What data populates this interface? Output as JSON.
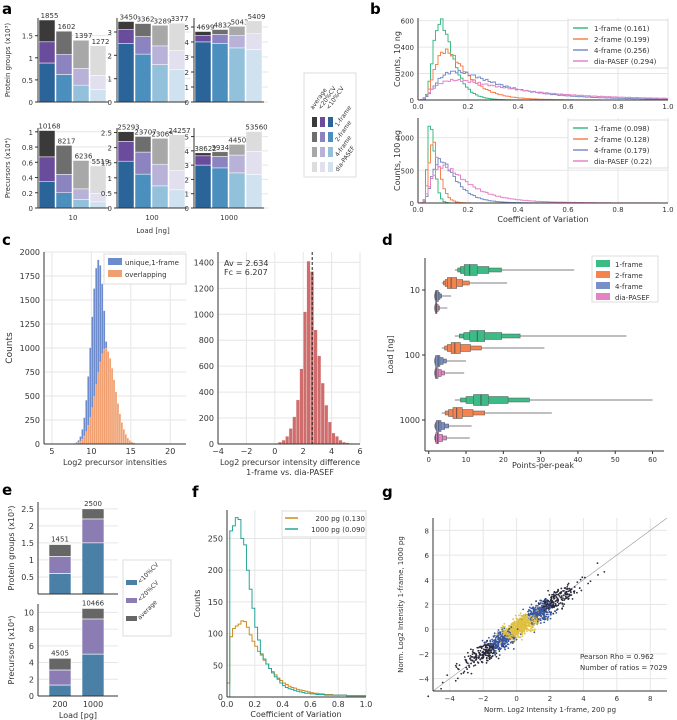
{
  "panels": {
    "a": "a",
    "b": "b",
    "c": "c",
    "d": "d",
    "e": "e",
    "f": "f",
    "g": "g"
  },
  "colors": {
    "avg": [
      "#3a3a3a",
      "#6e6e6e",
      "#a8a8a8",
      "#dcdcdc"
    ],
    "cv20": [
      "#6a4c9c",
      "#8c84c0",
      "#b8b2d8",
      "#e2e0ef"
    ],
    "cv10": [
      "#2a6499",
      "#4b8fbf",
      "#93c0da",
      "#d0e2ef"
    ],
    "b_series": [
      "#3dbb86",
      "#f4834e",
      "#7a8fc8",
      "#e483c6"
    ],
    "c_unique": "#6e8ccc",
    "c_overlap": "#f0a070",
    "c_diff": "#cf6d6d",
    "e_cv10": "#4a7fa6",
    "e_cv20": "#8c7cb4",
    "e_avg": "#666666",
    "f_200": "#d08b1a",
    "f_1000": "#27a598",
    "g_points": "#2a2a3a",
    "g_dense": "#3b57a0",
    "g_core": "#e0c040"
  },
  "chart_data": [
    {
      "id": "a",
      "type": "bar",
      "title": "",
      "xlabel": "Load [ng]",
      "groups": [
        "10",
        "100",
        "1000"
      ],
      "methods": [
        "1-frame",
        "2-frame",
        "4-frame",
        "dia-PASEF"
      ],
      "legend": {
        "rows": [
          "1-frame",
          "2-frame",
          "4-frame",
          "dia-PASEF"
        ],
        "cols": [
          "average",
          "<20%CV",
          "<10%CV"
        ]
      },
      "protein_groups": {
        "ylabel": "Protein groups (x10³)",
        "ylims": [
          [
            0,
            1.9
          ],
          [
            0,
            3.6
          ],
          [
            0,
            5.6
          ]
        ],
        "yticks": [
          [
            0,
            0.5,
            1,
            1.5
          ],
          [
            0,
            1,
            2,
            3
          ],
          [
            0,
            1,
            2,
            3,
            4,
            5
          ]
        ],
        "totals": [
          [
            1855,
            1602,
            1397,
            1272
          ],
          [
            3450,
            3362,
            3289,
            3377
          ],
          [
            4699,
            4832,
            5043,
            5409
          ]
        ],
        "cv20": [
          [
            1.36,
            1.08,
            0.76,
            0.6
          ],
          [
            3.1,
            2.8,
            2.4,
            2.2
          ],
          [
            4.45,
            4.5,
            4.45,
            4.55
          ]
        ],
        "cv10": [
          [
            0.88,
            0.62,
            0.38,
            0.28
          ],
          [
            2.5,
            2.05,
            1.6,
            1.38
          ],
          [
            4.0,
            3.9,
            3.6,
            3.5
          ]
        ]
      },
      "precursors": {
        "ylabel": "Precursors (x10⁴)",
        "ylims": [
          [
            0,
            1.05
          ],
          [
            0,
            2.65
          ],
          [
            0,
            5.6
          ]
        ],
        "yticks": [
          [
            0,
            0.2,
            0.4,
            0.6,
            0.8,
            1
          ],
          [
            0,
            0.5,
            1,
            1.5,
            2,
            2.5
          ],
          [
            0,
            1,
            2,
            3,
            4,
            5
          ]
        ],
        "totals": [
          [
            10168,
            8217,
            6236,
            5519
          ],
          [
            25293,
            23707,
            23065,
            24257
          ],
          [
            38622,
            39345,
            44503,
            53560
          ]
        ],
        "cv20": [
          [
            0.67,
            0.44,
            0.25,
            0.19
          ],
          [
            2.2,
            1.85,
            1.45,
            1.25
          ],
          [
            3.65,
            3.6,
            3.7,
            3.95
          ]
        ],
        "cv10": [
          [
            0.35,
            0.2,
            0.11,
            0.08
          ],
          [
            1.55,
            1.12,
            0.73,
            0.6
          ],
          [
            3.0,
            2.8,
            2.45,
            2.35
          ]
        ]
      }
    },
    {
      "id": "b",
      "type": "line",
      "xlabel": "Coefficient of Variation",
      "xlim": [
        0,
        1
      ],
      "xticks": [
        0.0,
        0.2,
        0.4,
        0.6,
        0.8,
        1.0
      ],
      "subplots": [
        {
          "ylabel": "Counts, 10 ng",
          "ylim": [
            0,
            620
          ],
          "yticks": [
            0,
            200,
            400,
            600
          ],
          "series": [
            {
              "name": "1-frame (0.161)",
              "peak_x": 0.09,
              "peak": 590,
              "width": 0.11
            },
            {
              "name": "2-frame (0.199)",
              "peak_x": 0.11,
              "peak": 370,
              "width": 0.14
            },
            {
              "name": "4-frame (0.256)",
              "peak_x": 0.15,
              "peak": 215,
              "width": 0.19
            },
            {
              "name": "dia-PASEF (0.294)",
              "peak_x": 0.15,
              "peak": 150,
              "width": 0.23
            }
          ]
        },
        {
          "ylabel": "Counts, 100 ng",
          "ylim": [
            0,
            1300
          ],
          "yticks": [
            0,
            500,
            1000
          ],
          "series": [
            {
              "name": "1-frame (0.098)",
              "peak_x": 0.05,
              "peak": 1260,
              "width": 0.07
            },
            {
              "name": "2-frame (0.128)",
              "peak_x": 0.06,
              "peak": 920,
              "width": 0.09
            },
            {
              "name": "4-frame (0.179)",
              "peak_x": 0.09,
              "peak": 650,
              "width": 0.13
            },
            {
              "name": "dia-PASEF (0.22)",
              "peak_x": 0.1,
              "peak": 560,
              "width": 0.17
            }
          ]
        }
      ]
    },
    {
      "id": "c1",
      "type": "bar",
      "xlabel": "Log2 precursor intensities",
      "ylabel": "Counts",
      "xlim": [
        4,
        22
      ],
      "xticks": [
        5,
        10,
        15,
        20
      ],
      "ylim": [
        0,
        2000
      ],
      "yticks": [
        0,
        250,
        500,
        750,
        1000,
        1250,
        1500,
        1750,
        2000
      ],
      "series": [
        {
          "name": "unique,1-frame",
          "mean": 10.9,
          "sd": 0.9,
          "peak": 1920
        },
        {
          "name": "overlapping",
          "mean": 11.8,
          "sd": 1.2,
          "peak": 1000
        }
      ]
    },
    {
      "id": "c2",
      "type": "bar",
      "xlabel": "Log2 precursor intensity difference",
      "xlabel2": "1-frame vs. dia-PASEF",
      "ylabel": "",
      "xlim": [
        -4,
        6
      ],
      "xticks": [
        -4,
        -2,
        0,
        2,
        4,
        6
      ],
      "ylim": [
        0,
        1480
      ],
      "yticks": [
        0,
        200,
        400,
        600,
        800,
        1000,
        1200,
        1400
      ],
      "annotation": [
        "Av = 2.634",
        "Fc = 6.207"
      ],
      "mean": 2.634,
      "bins": [
        0,
        0.25,
        0.5,
        0.75,
        1.0,
        1.25,
        1.5,
        1.75,
        2.0,
        2.25,
        2.5,
        2.75,
        3.0,
        3.25,
        3.5,
        3.75,
        4.0,
        4.25,
        4.5,
        4.75,
        5.0,
        5.25,
        5.5
      ],
      "counts": [
        5,
        15,
        30,
        60,
        120,
        210,
        340,
        580,
        1020,
        1410,
        1330,
        880,
        680,
        470,
        300,
        170,
        85,
        60,
        30,
        15,
        10,
        5
      ]
    },
    {
      "id": "d",
      "type": "boxen",
      "xlabel": "Points-per-peak",
      "ylabel": "Load [ng]",
      "xlim": [
        -1,
        62
      ],
      "xticks": [
        0,
        10,
        20,
        30,
        40,
        50,
        60
      ],
      "categories": [
        "10",
        "100",
        "1000"
      ],
      "series": [
        "1-frame",
        "2-frame",
        "4-frame",
        "dia-PASEF"
      ],
      "median": [
        [
          11,
          6,
          2,
          2
        ],
        [
          13,
          7,
          2.5,
          2
        ],
        [
          14,
          7.5,
          2.7,
          2.3
        ]
      ],
      "q1": [
        [
          9.5,
          5,
          1.8,
          1.8
        ],
        [
          11,
          6,
          1.8,
          1.8
        ],
        [
          12,
          6.5,
          2,
          1.9
        ]
      ],
      "q3": [
        [
          13,
          7.5,
          2.6,
          2.2
        ],
        [
          15,
          8.5,
          3,
          2.5
        ],
        [
          16,
          9,
          3.3,
          2.7
        ]
      ],
      "max": [
        [
          39,
          21,
          6,
          5
        ],
        [
          53,
          31,
          10,
          9.5
        ],
        [
          60,
          33,
          11.5,
          11
        ]
      ],
      "min": [
        [
          7,
          3.5,
          1.5,
          1.5
        ],
        [
          7,
          3.5,
          1.5,
          1.5
        ],
        [
          7,
          3.5,
          1.5,
          1.5
        ]
      ]
    },
    {
      "id": "e",
      "type": "bar",
      "xlabel": "Load [pg]",
      "categories": [
        "200",
        "1000"
      ],
      "legend": [
        "<10%CV",
        "<20%CV",
        "average"
      ],
      "protein_groups": {
        "ylabel": "Protein groups (x10³)",
        "ylim": [
          0,
          2.7
        ],
        "yticks": [
          0.5,
          1,
          1.5,
          2,
          2.5
        ],
        "totals": [
          1451,
          2500
        ],
        "cv20": [
          1.1,
          2.2
        ],
        "cv10": [
          0.6,
          1.5
        ]
      },
      "precursors": {
        "ylabel": "Precursors (x10⁴)",
        "ylim": [
          0,
          11
        ],
        "yticks": [
          0,
          2,
          4,
          6,
          8,
          10
        ],
        "totals": [
          4505,
          10466
        ],
        "cv20": [
          3.1,
          9.2
        ],
        "cv10": [
          1.3,
          5.0
        ]
      }
    },
    {
      "id": "f",
      "type": "line",
      "xlabel": "Coefficient of Variation",
      "ylabel": "Counts",
      "xlim": [
        0,
        1
      ],
      "xticks": [
        0.0,
        0.2,
        0.4,
        0.6,
        0.8,
        1.0
      ],
      "ylim": [
        0,
        295
      ],
      "yticks": [
        0,
        50,
        100,
        150,
        200,
        250
      ],
      "series": [
        {
          "name": "200 pg (0.130",
          "values": [
            22,
            95,
            108,
            112,
            115,
            120,
            119,
            110,
            98,
            88,
            80,
            72,
            66,
            58,
            52,
            45,
            40,
            35,
            30,
            26,
            22,
            20,
            17,
            15,
            14,
            12,
            11,
            10,
            9,
            8,
            7,
            6,
            6,
            5,
            5,
            4,
            4,
            4,
            3,
            3,
            3,
            3,
            3,
            2,
            2,
            2,
            2,
            2,
            2,
            2
          ]
        },
        {
          "name": "1000 pg (0.090",
          "values": [
            0,
            262,
            270,
            283,
            280,
            250,
            240,
            200,
            170,
            140,
            110,
            90,
            68,
            60,
            52,
            45,
            38,
            32,
            28,
            22,
            18,
            15,
            13,
            12,
            10,
            9,
            8,
            7,
            6,
            6,
            5,
            5,
            4,
            4,
            4,
            3,
            3,
            3,
            3,
            3,
            3,
            3,
            3,
            2,
            2,
            2,
            2,
            2,
            2,
            2
          ]
        }
      ]
    },
    {
      "id": "g",
      "type": "scatter",
      "xlabel": "Norm. Log2 Intensity 1-frame, 200 pg",
      "ylabel": "Norm. Log2 Intensity 1-frame, 1000 pg",
      "xlim": [
        -5,
        9
      ],
      "ylim": [
        -5,
        9
      ],
      "xticks": [
        -4,
        -2,
        0,
        2,
        4,
        6,
        8
      ],
      "yticks": [
        -4,
        -2,
        0,
        2,
        4,
        6,
        8
      ],
      "annotation": [
        "Pearson Rho = 0.962",
        "Number of ratios = 7029"
      ],
      "n_points": 7029,
      "pearson_rho": 0.962
    }
  ]
}
